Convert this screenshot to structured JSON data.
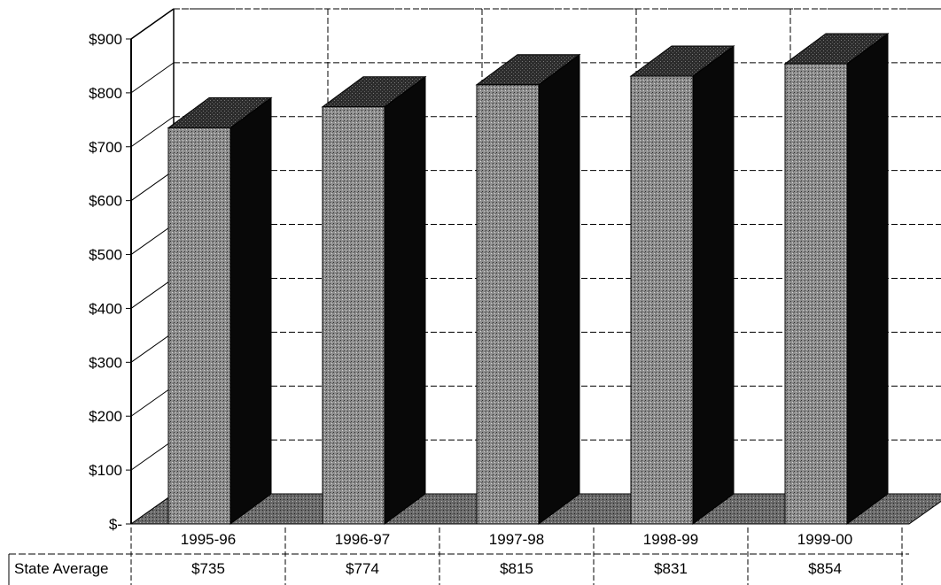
{
  "chart_data": {
    "type": "bar",
    "categories": [
      "1995-96",
      "1996-97",
      "1997-98",
      "1998-99",
      "1999-00"
    ],
    "series": [
      {
        "name": "State Average",
        "values": [
          735,
          774,
          815,
          831,
          854
        ]
      }
    ],
    "value_labels": [
      "$735",
      "$774",
      "$815",
      "$831",
      "$854"
    ],
    "y_ticks": [
      {
        "value": 0,
        "label": "$-"
      },
      {
        "value": 100,
        "label": "$100"
      },
      {
        "value": 200,
        "label": "$200"
      },
      {
        "value": 300,
        "label": "$300"
      },
      {
        "value": 400,
        "label": "$400"
      },
      {
        "value": 500,
        "label": "$500"
      },
      {
        "value": 600,
        "label": "$600"
      },
      {
        "value": 700,
        "label": "$700"
      },
      {
        "value": 800,
        "label": "$800"
      },
      {
        "value": 900,
        "label": "$900"
      }
    ],
    "ylim": [
      0,
      900
    ],
    "title": "",
    "xlabel": "",
    "ylabel": "",
    "grid": true,
    "style": "3d-column-with-data-table",
    "colors": {
      "bar_front": "#8a8a8a",
      "bar_side": "#0a0a0a",
      "bar_top": "#2e2e2e",
      "floor": "#6e6e6e"
    }
  },
  "data_table": {
    "row_label": "State Average"
  }
}
